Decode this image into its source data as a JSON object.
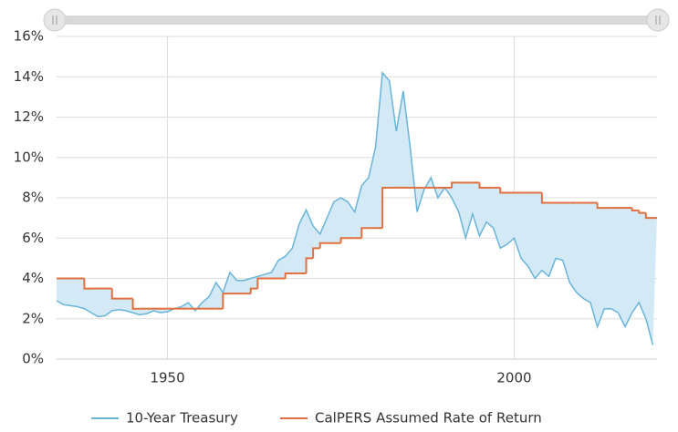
{
  "chart_data": {
    "type": "line",
    "x": [
      1934,
      1935,
      1936,
      1937,
      1938,
      1939,
      1940,
      1941,
      1942,
      1943,
      1944,
      1945,
      1946,
      1947,
      1948,
      1949,
      1950,
      1951,
      1952,
      1953,
      1954,
      1955,
      1956,
      1957,
      1958,
      1959,
      1960,
      1961,
      1962,
      1963,
      1964,
      1965,
      1966,
      1967,
      1968,
      1969,
      1970,
      1971,
      1972,
      1973,
      1974,
      1975,
      1976,
      1977,
      1978,
      1979,
      1980,
      1981,
      1982,
      1983,
      1984,
      1985,
      1986,
      1987,
      1988,
      1989,
      1990,
      1991,
      1992,
      1993,
      1994,
      1995,
      1996,
      1997,
      1998,
      1999,
      2000,
      2001,
      2002,
      2003,
      2004,
      2005,
      2006,
      2007,
      2008,
      2009,
      2010,
      2011,
      2012,
      2013,
      2014,
      2015,
      2016,
      2017,
      2018,
      2019,
      2020
    ],
    "series": [
      {
        "name": "10-Year Treasury",
        "color": "#6ab4d8",
        "fill": "#d3e9f6",
        "values": [
          2.9,
          2.7,
          2.65,
          2.6,
          2.5,
          2.3,
          2.1,
          2.15,
          2.4,
          2.45,
          2.4,
          2.3,
          2.2,
          2.25,
          2.4,
          2.3,
          2.35,
          2.5,
          2.6,
          2.8,
          2.4,
          2.8,
          3.1,
          3.8,
          3.3,
          4.3,
          3.9,
          3.9,
          4.0,
          4.1,
          4.2,
          4.3,
          4.9,
          5.1,
          5.5,
          6.7,
          7.4,
          6.6,
          6.2,
          7.0,
          7.8,
          8.0,
          7.8,
          7.3,
          8.6,
          9.0,
          10.5,
          14.2,
          13.8,
          11.3,
          13.3,
          10.5,
          7.3,
          8.4,
          9.0,
          8.0,
          8.5,
          8.0,
          7.3,
          6.0,
          7.2,
          6.1,
          6.8,
          6.5,
          5.5,
          5.7,
          6.0,
          5.0,
          4.6,
          4.0,
          4.4,
          4.1,
          5.0,
          4.9,
          3.8,
          3.3,
          3.0,
          2.8,
          1.6,
          2.5,
          2.5,
          2.3,
          1.6,
          2.3,
          2.8,
          2.0,
          0.7
        ]
      },
      {
        "name": "CalPERS Assumed Rate of Return",
        "color": "#e2703f",
        "step": true,
        "values": [
          4.0,
          4.0,
          4.0,
          4.0,
          3.5,
          3.5,
          3.5,
          3.5,
          3.0,
          3.0,
          3.0,
          2.5,
          2.5,
          2.5,
          2.5,
          2.5,
          2.5,
          2.5,
          2.5,
          2.5,
          2.5,
          2.5,
          2.5,
          2.5,
          3.25,
          3.25,
          3.25,
          3.25,
          3.5,
          4.0,
          4.0,
          4.0,
          4.0,
          4.25,
          4.25,
          4.25,
          5.0,
          5.5,
          5.75,
          5.75,
          5.75,
          6.0,
          6.0,
          6.0,
          6.5,
          6.5,
          6.5,
          8.5,
          8.5,
          8.5,
          8.5,
          8.5,
          8.5,
          8.5,
          8.5,
          8.5,
          8.5,
          8.75,
          8.75,
          8.75,
          8.75,
          8.5,
          8.5,
          8.5,
          8.25,
          8.25,
          8.25,
          8.25,
          8.25,
          8.25,
          7.75,
          7.75,
          7.75,
          7.75,
          7.75,
          7.75,
          7.75,
          7.75,
          7.5,
          7.5,
          7.5,
          7.5,
          7.5,
          7.375,
          7.25,
          7.0,
          7.0
        ]
      }
    ],
    "xlim": [
      1934,
      2020.6
    ],
    "xticks": [
      1950,
      2000
    ],
    "ylim": [
      0,
      16
    ],
    "yticks": [
      {
        "value": 0,
        "label": "0%"
      },
      {
        "value": 2,
        "label": "2%"
      },
      {
        "value": 4,
        "label": "4%"
      },
      {
        "value": 6,
        "label": "6%"
      },
      {
        "value": 8,
        "label": "8%"
      },
      {
        "value": 10,
        "label": "10%"
      },
      {
        "value": 12,
        "label": "12%"
      },
      {
        "value": 14,
        "label": "14%"
      },
      {
        "value": 16,
        "label": "16%"
      }
    ],
    "grid": true,
    "legend": "bottom"
  }
}
